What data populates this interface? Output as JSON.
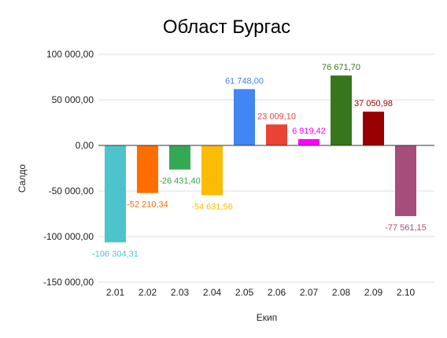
{
  "chart_data": {
    "type": "bar",
    "title": "Област Бургас",
    "xlabel": "Екип",
    "ylabel": "Салдо",
    "ylim": [
      -150000,
      100000
    ],
    "yticks": [
      100000,
      50000,
      0,
      -50000,
      -100000,
      -150000
    ],
    "ytick_labels": [
      "100 000,00",
      "50 000,00",
      "0,00",
      "-50 000,00",
      "-100 000,00",
      "-150 000,00"
    ],
    "grid": true,
    "legend": "none",
    "categories": [
      "2.01",
      "2.02",
      "2.03",
      "2.04",
      "2.05",
      "2.06",
      "2.07",
      "2.08",
      "2.09",
      "2.10"
    ],
    "values": [
      -106304.31,
      -52210.34,
      -26431.4,
      -54631.56,
      61748.0,
      23009.1,
      6919.42,
      76671.7,
      37050.98,
      -77561.15
    ],
    "data_labels": [
      "-106 304,31",
      "-52 210,34",
      "-26 431,40",
      "-54 631,56",
      "61 748,00",
      "23 009,10",
      "6 919,42",
      "76 671,70",
      "37 050,98",
      "-77 561,15"
    ],
    "bar_colors": [
      "#4dc4cc",
      "#ff6d01",
      "#34a853",
      "#fbbc04",
      "#4285f4",
      "#ea4335",
      "#ff00ff",
      "#38761d",
      "#990000",
      "#a64d79"
    ],
    "label_colors": [
      "#4dc4cc",
      "#ff6d01",
      "#34a853",
      "#fbbc04",
      "#4285f4",
      "#ea4335",
      "#ff00ff",
      "#38761d",
      "#990000",
      "#a64d79"
    ]
  }
}
